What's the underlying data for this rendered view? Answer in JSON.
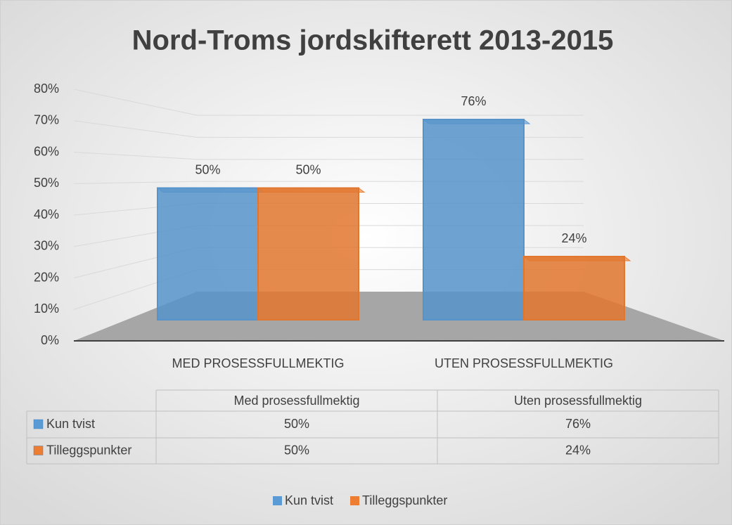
{
  "chart_data": {
    "type": "bar",
    "title": "Nord-Troms jordskifterett 2013-2015",
    "categories": [
      "MED PROSESSFULLMEKTIG",
      "UTEN PROSESSFULLMEKTIG"
    ],
    "table_categories": [
      "Med prosessfullmektig",
      "Uten prosessfullmektig"
    ],
    "series": [
      {
        "name": "Kun tvist",
        "color": "#5b9bd5",
        "values": [
          50,
          76
        ],
        "value_labels": [
          "50%",
          "76%"
        ]
      },
      {
        "name": "Tilleggspunkter",
        "color": "#ed7d31",
        "values": [
          50,
          24
        ],
        "value_labels": [
          "50%",
          "24%"
        ]
      }
    ],
    "ylim": [
      0,
      80
    ],
    "yticks": [
      {
        "value": 0,
        "label": "0%"
      },
      {
        "value": 10,
        "label": "10%"
      },
      {
        "value": 20,
        "label": "20%"
      },
      {
        "value": 30,
        "label": "30%"
      },
      {
        "value": 40,
        "label": "40%"
      },
      {
        "value": 50,
        "label": "50%"
      },
      {
        "value": 60,
        "label": "60%"
      },
      {
        "value": 70,
        "label": "70%"
      },
      {
        "value": 80,
        "label": "80%"
      }
    ],
    "grid": true,
    "legend": "bottom"
  }
}
